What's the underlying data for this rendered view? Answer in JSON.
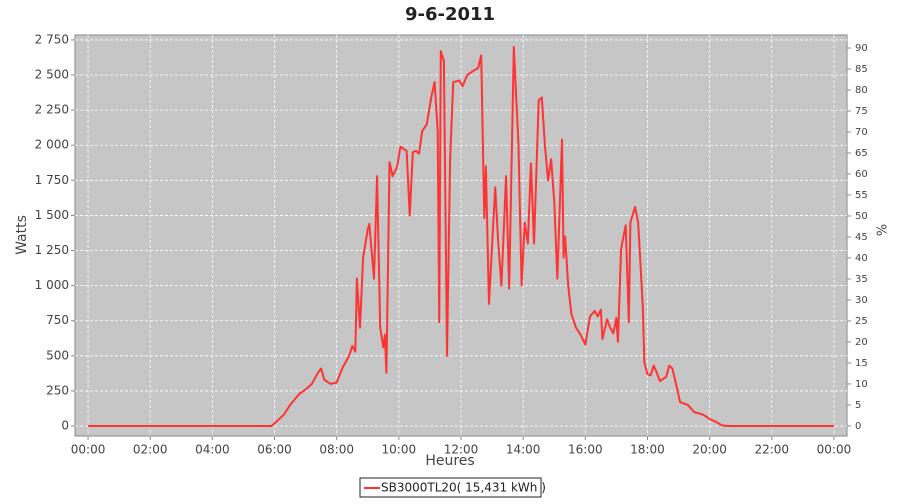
{
  "chart_data": {
    "type": "line",
    "title": "9-6-2011",
    "x_label": "Heures",
    "y_label": "Watts",
    "y2_label": "%",
    "x": [
      0,
      5.9,
      6.0,
      6.3,
      6.5,
      6.8,
      7.0,
      7.2,
      7.4,
      7.5,
      7.6,
      7.8,
      8.0,
      8.2,
      8.4,
      8.5,
      8.6,
      8.65,
      8.75,
      8.85,
      9.0,
      9.05,
      9.2,
      9.3,
      9.4,
      9.5,
      9.55,
      9.6,
      9.7,
      9.8,
      9.95,
      10.05,
      10.25,
      10.35,
      10.45,
      10.55,
      10.65,
      10.75,
      10.9,
      11.05,
      11.15,
      11.25,
      11.3,
      11.35,
      11.45,
      11.55,
      11.65,
      11.75,
      11.95,
      12.05,
      12.2,
      12.4,
      12.55,
      12.65,
      12.75,
      12.8,
      12.9,
      13.1,
      13.2,
      13.3,
      13.45,
      13.55,
      13.7,
      13.85,
      13.95,
      14.05,
      14.15,
      14.25,
      14.35,
      14.5,
      14.6,
      14.7,
      14.8,
      14.9,
      15.0,
      15.1,
      15.25,
      15.3,
      15.35,
      15.45,
      15.55,
      15.7,
      15.85,
      16.0,
      16.15,
      16.3,
      16.4,
      16.5,
      16.55,
      16.7,
      16.8,
      16.9,
      17.0,
      17.05,
      17.15,
      17.3,
      17.4,
      17.45,
      17.6,
      17.7,
      17.85,
      17.9,
      18.0,
      18.1,
      18.2,
      18.3,
      18.4,
      18.6,
      18.7,
      18.8,
      18.95,
      19.05,
      19.3,
      19.5,
      19.8,
      20.0,
      20.2,
      20.4,
      20.6,
      24
    ],
    "series": [
      {
        "name": "SB3000TL20( 15,431 kWh )",
        "color": "#ff3333",
        "values": [
          0,
          0,
          20,
          80,
          150,
          230,
          260,
          300,
          380,
          410,
          330,
          300,
          310,
          420,
          500,
          570,
          530,
          1050,
          700,
          1200,
          1400,
          1440,
          1050,
          1780,
          700,
          560,
          650,
          380,
          1880,
          1780,
          1850,
          1990,
          1960,
          1500,
          1950,
          1960,
          1940,
          2100,
          2150,
          2350,
          2450,
          2100,
          740,
          2670,
          2600,
          500,
          1900,
          2450,
          2460,
          2420,
          2500,
          2530,
          2550,
          2640,
          1480,
          1850,
          870,
          1700,
          1300,
          1000,
          1780,
          980,
          2700,
          2000,
          1000,
          1450,
          1300,
          1870,
          1300,
          2320,
          2340,
          2000,
          1750,
          1900,
          1600,
          1050,
          2040,
          1200,
          1350,
          1000,
          800,
          700,
          650,
          580,
          780,
          820,
          780,
          830,
          620,
          760,
          700,
          660,
          770,
          600,
          1260,
          1430,
          740,
          1450,
          1560,
          1450,
          850,
          450,
          370,
          360,
          430,
          380,
          320,
          350,
          430,
          410,
          270,
          170,
          150,
          100,
          80,
          50,
          30,
          5,
          0,
          0
        ]
      }
    ],
    "xlim": [
      -0.42,
      24.42
    ],
    "xticks": [
      {
        "value": 0,
        "label": "00:00"
      },
      {
        "value": 2,
        "label": "02:00"
      },
      {
        "value": 4,
        "label": "04:00"
      },
      {
        "value": 6,
        "label": "06:00"
      },
      {
        "value": 8,
        "label": "08:00"
      },
      {
        "value": 10,
        "label": "10:00"
      },
      {
        "value": 12,
        "label": "12:00"
      },
      {
        "value": 14,
        "label": "14:00"
      },
      {
        "value": 16,
        "label": "16:00"
      },
      {
        "value": 18,
        "label": "18:00"
      },
      {
        "value": 20,
        "label": "20:00"
      },
      {
        "value": 22,
        "label": "22:00"
      },
      {
        "value": 24,
        "label": "00:00"
      }
    ],
    "ylim": [
      -71,
      2785
    ],
    "yticks": [
      0,
      250,
      500,
      750,
      {
        "value": 1000,
        "label": "1 000"
      },
      {
        "value": 1250,
        "label": "1 250"
      },
      {
        "value": 1500,
        "label": "1 500"
      },
      {
        "value": 1750,
        "label": "1 750"
      },
      {
        "value": 2000,
        "label": "2 000"
      },
      {
        "value": 2250,
        "label": "2 250"
      },
      {
        "value": 2500,
        "label": "2 500"
      },
      {
        "value": 2750,
        "label": "2 750"
      }
    ],
    "y2lim": [
      -2.4,
      93.1
    ],
    "y2ticks": [
      0,
      5,
      10,
      15,
      20,
      25,
      30,
      35,
      40,
      45,
      50,
      55,
      60,
      65,
      70,
      75,
      80,
      85,
      90
    ],
    "grid": true,
    "background": "#c6c6c6"
  }
}
